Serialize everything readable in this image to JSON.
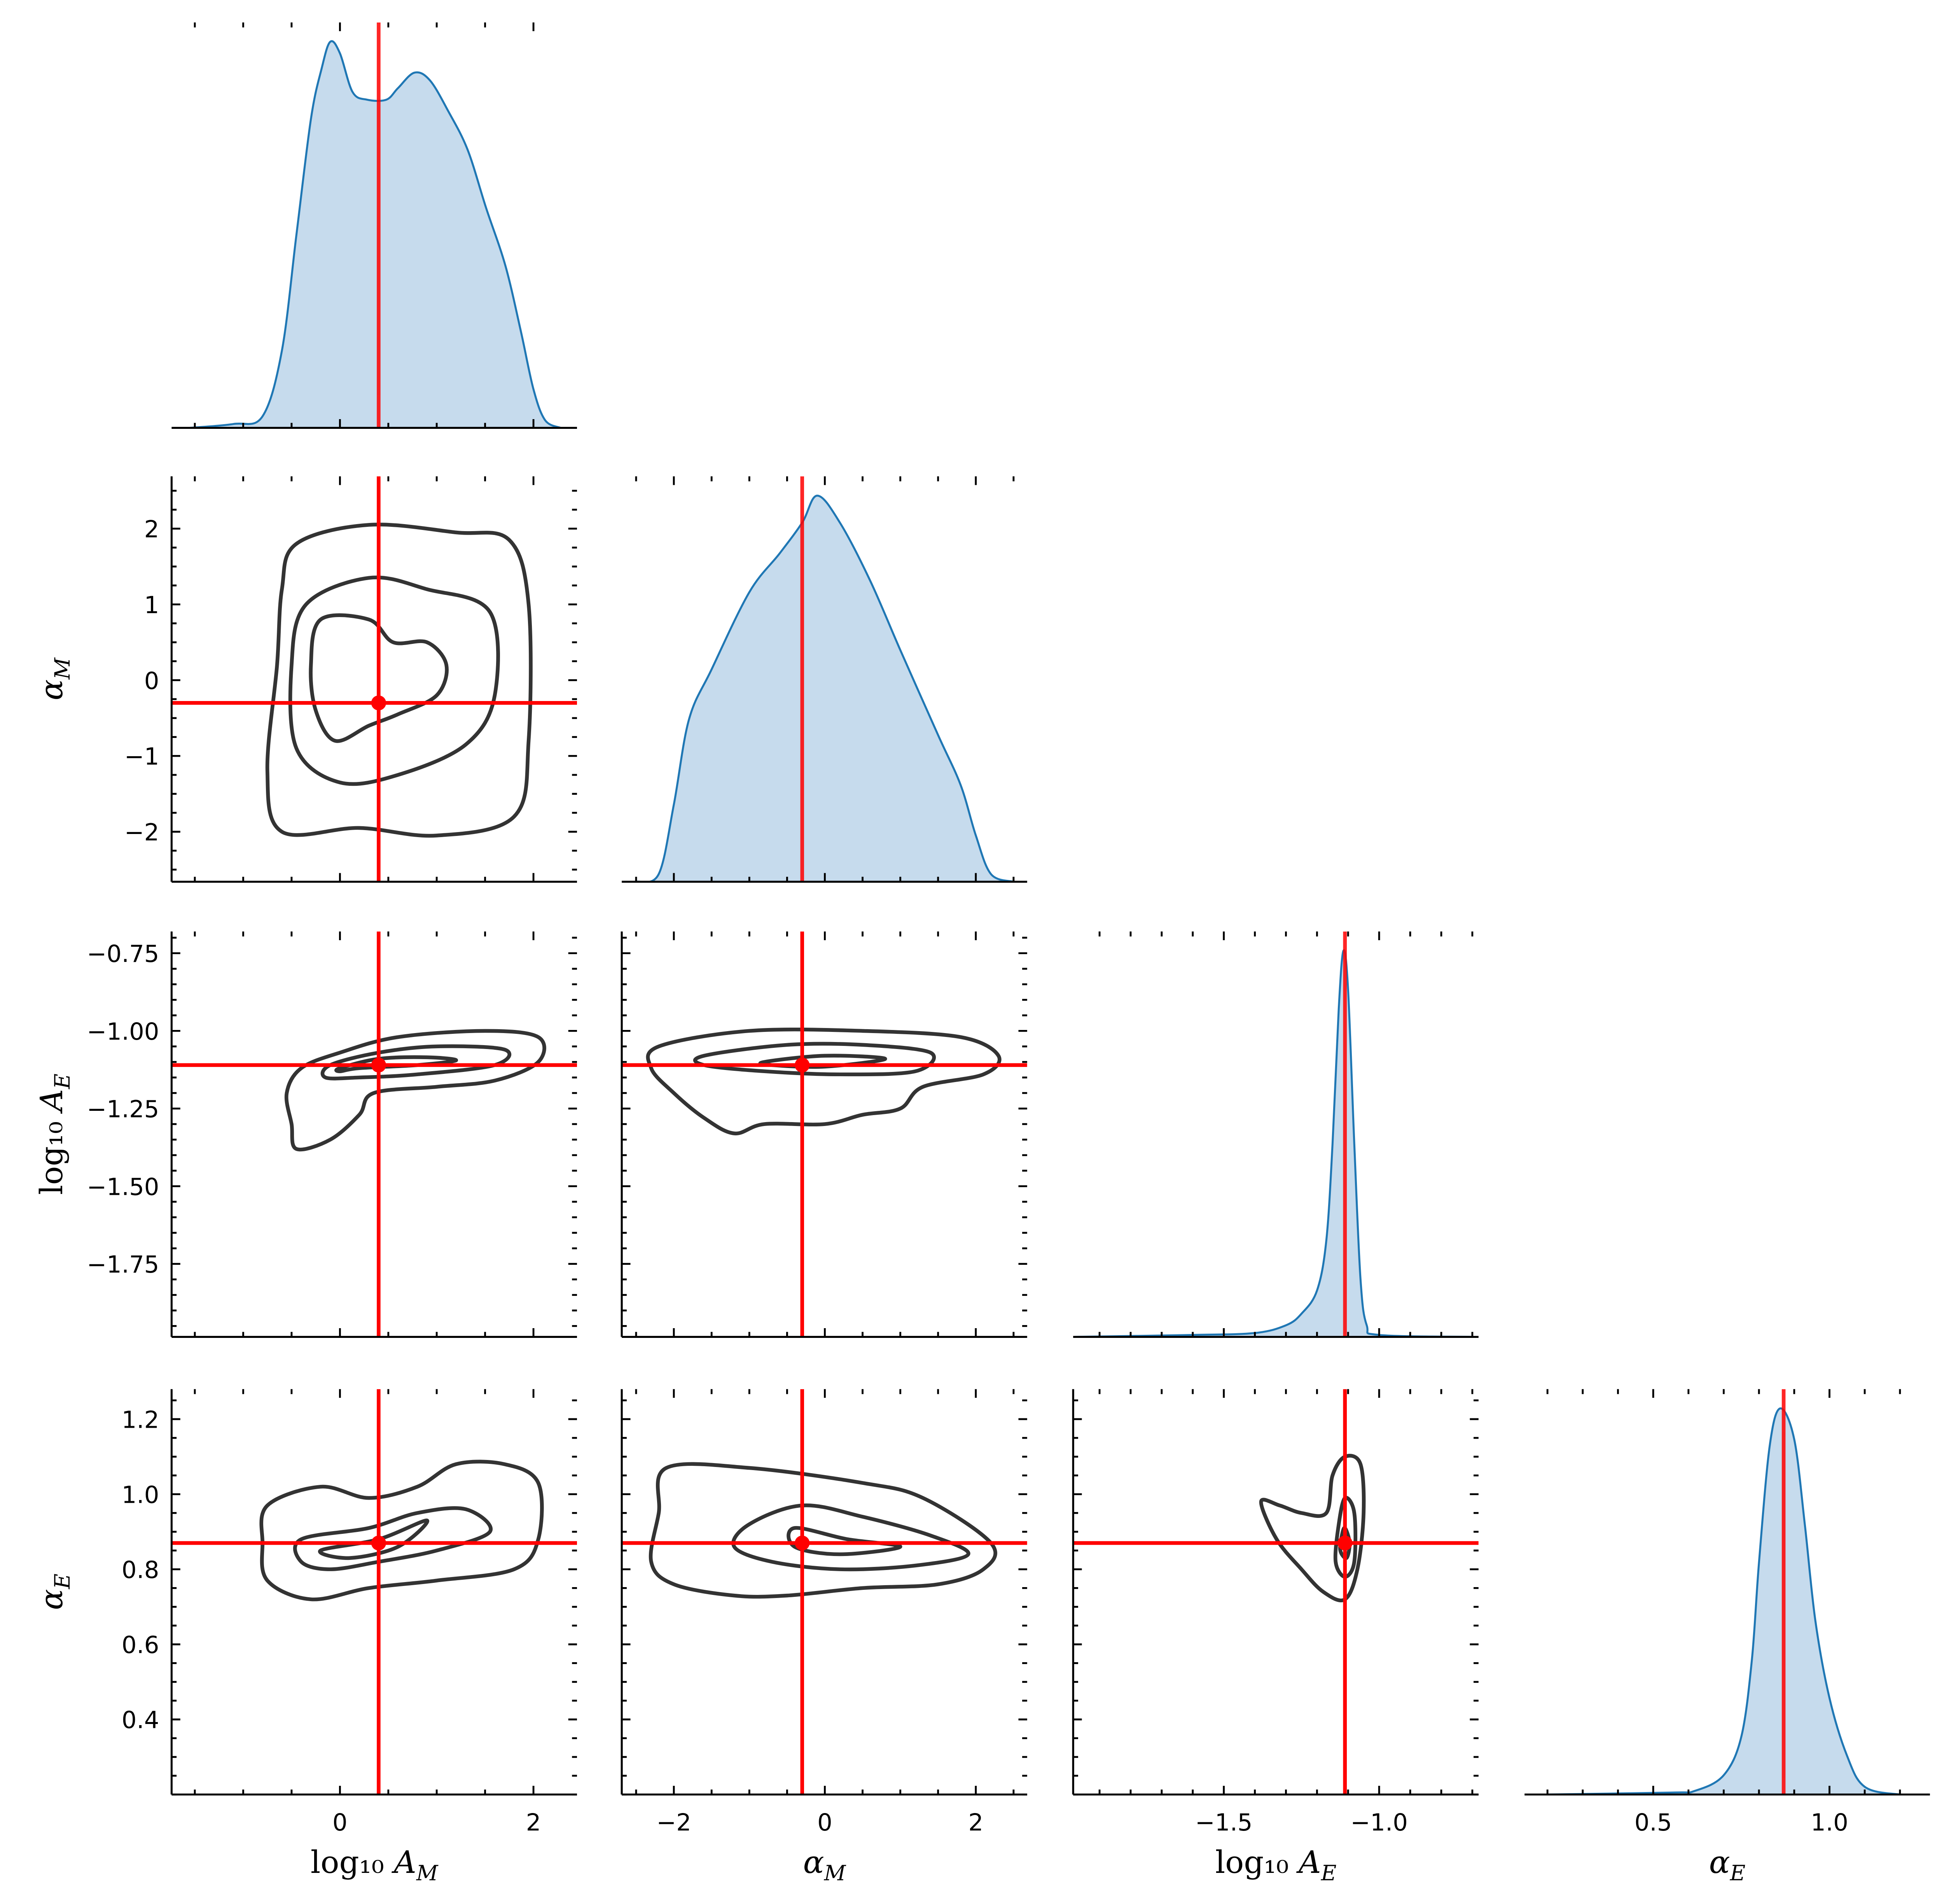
{
  "chart_data": {
    "type": "corner",
    "colors": {
      "kde_line": "#1f77b4",
      "kde_fill": "#c6dbed",
      "truth": "#ff0000",
      "contour": "#333333"
    },
    "truths": [
      0.4,
      -0.3,
      -1.11,
      0.87
    ],
    "parameters": [
      {
        "label": {
          "text": "log₁₀ ",
          "sym": "A",
          "sub": "M"
        },
        "xrange": [
          -1.74,
          2.45
        ],
        "yrange": [
          -1.74,
          2.45
        ],
        "x_ticks": [
          0,
          2
        ],
        "x_tick_labels": [
          "0",
          "2"
        ],
        "x_minor": 0.5,
        "y_ticks": [],
        "y_tick_labels": [],
        "y_minor": 0.5
      },
      {
        "label": {
          "text": "",
          "sym": "α",
          "sub": "M"
        },
        "xrange": [
          -2.69,
          2.68
        ],
        "yrange": [
          -2.66,
          2.69
        ],
        "x_ticks": [
          -2,
          0,
          2
        ],
        "x_tick_labels": [
          "−2",
          "0",
          "2"
        ],
        "x_minor": 0.5,
        "y_ticks": [
          -2,
          -1,
          0,
          1,
          2
        ],
        "y_tick_labels": [
          "−2",
          "−1",
          "0",
          "1",
          "2"
        ],
        "y_minor": 0.25
      },
      {
        "label": {
          "text": "log₁₀ ",
          "sym": "A",
          "sub": "E"
        },
        "xrange": [
          -1.985,
          -0.68
        ],
        "yrange": [
          -1.985,
          -0.68
        ],
        "x_ticks": [
          -1.5,
          -1.0
        ],
        "x_tick_labels": [
          "−1.5",
          "−1.0"
        ],
        "x_minor": 0.1,
        "y_ticks": [
          -1.75,
          -1.5,
          -1.25,
          -1.0,
          -0.75
        ],
        "y_tick_labels": [
          "−1.75",
          "−1.50",
          "−1.25",
          "−1.00",
          "−0.75"
        ],
        "y_minor": 0.05
      },
      {
        "label": {
          "text": "",
          "sym": "α",
          "sub": "E"
        },
        "xrange": [
          0.135,
          1.285
        ],
        "yrange": [
          0.2,
          1.28
        ],
        "x_ticks": [
          0.5,
          1.0
        ],
        "x_tick_labels": [
          "0.5",
          "1.0"
        ],
        "x_minor": 0.1,
        "y_ticks": [
          0.4,
          0.6,
          0.8,
          1.0,
          1.2
        ],
        "y_tick_labels": [
          "0.4",
          "0.6",
          "0.8",
          "1.0",
          "1.2"
        ],
        "y_minor": 0.05
      }
    ],
    "diagonal": [
      {
        "x": [
          -1.55,
          -1.1,
          -0.8,
          -0.6,
          -0.45,
          -0.3,
          -0.19,
          -0.1,
          0,
          0.13,
          0.28,
          0.48,
          0.6,
          0.77,
          0.93,
          1.12,
          1.32,
          1.51,
          1.71,
          1.87,
          2.0,
          2.12,
          2.28
        ],
        "density": [
          0,
          0.01,
          0.03,
          0.2,
          0.5,
          0.8,
          0.93,
          1.0,
          0.97,
          0.87,
          0.85,
          0.85,
          0.88,
          0.92,
          0.9,
          0.82,
          0.72,
          0.57,
          0.42,
          0.25,
          0.1,
          0.02,
          0
        ]
      },
      {
        "x": [
          -2.5,
          -2.2,
          -2.0,
          -1.8,
          -1.5,
          -1.0,
          -0.6,
          -0.3,
          -0.1,
          0.2,
          0.6,
          1.0,
          1.5,
          1.8,
          2.0,
          2.2,
          2.5
        ],
        "density": [
          0,
          0.02,
          0.2,
          0.42,
          0.55,
          0.75,
          0.85,
          0.93,
          1.0,
          0.93,
          0.78,
          0.6,
          0.38,
          0.25,
          0.12,
          0.02,
          0
        ]
      },
      {
        "x": [
          -1.98,
          -1.6,
          -1.4,
          -1.3,
          -1.25,
          -1.2,
          -1.17,
          -1.15,
          -1.13,
          -1.115,
          -1.1,
          -1.08,
          -1.06,
          -1.04,
          -1.0,
          -0.7
        ],
        "density": [
          0,
          0.005,
          0.01,
          0.03,
          0.06,
          0.12,
          0.25,
          0.5,
          0.85,
          1.0,
          0.9,
          0.5,
          0.15,
          0.03,
          0.005,
          0
        ]
      },
      {
        "x": [
          0.2,
          0.55,
          0.62,
          0.7,
          0.75,
          0.78,
          0.8,
          0.83,
          0.86,
          0.9,
          0.93,
          0.96,
          1.0,
          1.05,
          1.1,
          1.2,
          1.28
        ],
        "density": [
          0,
          0.005,
          0.01,
          0.05,
          0.15,
          0.35,
          0.6,
          0.9,
          1.0,
          0.92,
          0.7,
          0.45,
          0.25,
          0.1,
          0.02,
          0,
          0
        ]
      }
    ],
    "contours": [
      {
        "row": 1,
        "col": 0,
        "levels": [
          [
            [
              -0.45,
              1.8
            ],
            [
              0.3,
              2.05
            ],
            [
              1.2,
              1.95
            ],
            [
              1.75,
              1.85
            ],
            [
              1.95,
              1.0
            ],
            [
              1.95,
              -0.8
            ],
            [
              1.8,
              -1.8
            ],
            [
              1.0,
              -2.05
            ],
            [
              0.2,
              -1.95
            ],
            [
              -0.6,
              -2.0
            ],
            [
              -0.75,
              -1.2
            ],
            [
              -0.65,
              0.2
            ],
            [
              -0.6,
              1.2
            ]
          ],
          [
            [
              -0.35,
              1.0
            ],
            [
              0.3,
              1.35
            ],
            [
              0.9,
              1.2
            ],
            [
              1.55,
              0.9
            ],
            [
              1.6,
              -0.2
            ],
            [
              1.3,
              -0.85
            ],
            [
              0.6,
              -1.25
            ],
            [
              0.0,
              -1.35
            ],
            [
              -0.45,
              -0.9
            ],
            [
              -0.5,
              0.2
            ]
          ],
          [
            [
              -0.2,
              0.8
            ],
            [
              0.3,
              0.8
            ],
            [
              0.55,
              0.5
            ],
            [
              0.9,
              0.5
            ],
            [
              1.1,
              0.2
            ],
            [
              1.0,
              -0.2
            ],
            [
              0.6,
              -0.45
            ],
            [
              0.3,
              -0.6
            ],
            [
              -0.05,
              -0.8
            ],
            [
              -0.25,
              -0.4
            ],
            [
              -0.3,
              0.2
            ]
          ]
        ]
      },
      {
        "row": 2,
        "col": 0,
        "levels": [
          [
            [
              -0.4,
              -1.12
            ],
            [
              0.0,
              -1.07
            ],
            [
              0.6,
              -1.02
            ],
            [
              1.5,
              -1.0
            ],
            [
              2.05,
              -1.02
            ],
            [
              2.05,
              -1.1
            ],
            [
              1.6,
              -1.16
            ],
            [
              1.0,
              -1.18
            ],
            [
              0.35,
              -1.2
            ],
            [
              0.2,
              -1.27
            ],
            [
              -0.1,
              -1.35
            ],
            [
              -0.45,
              -1.38
            ],
            [
              -0.5,
              -1.3
            ],
            [
              -0.55,
              -1.2
            ]
          ],
          [
            [
              -0.1,
              -1.11
            ],
            [
              0.4,
              -1.07
            ],
            [
              1.0,
              -1.05
            ],
            [
              1.7,
              -1.06
            ],
            [
              1.6,
              -1.11
            ],
            [
              0.8,
              -1.14
            ],
            [
              0.2,
              -1.15
            ],
            [
              -0.15,
              -1.15
            ]
          ],
          [
            [
              0.0,
              -1.12
            ],
            [
              0.4,
              -1.09
            ],
            [
              0.9,
              -1.085
            ],
            [
              1.2,
              -1.095
            ],
            [
              0.8,
              -1.11
            ],
            [
              0.2,
              -1.12
            ],
            [
              0.0,
              -1.13
            ]
          ]
        ]
      },
      {
        "row": 2,
        "col": 1,
        "levels": [
          [
            [
              -2.2,
              -1.05
            ],
            [
              -1.0,
              -1.0
            ],
            [
              0.5,
              -1.0
            ],
            [
              1.8,
              -1.02
            ],
            [
              2.3,
              -1.08
            ],
            [
              2.1,
              -1.14
            ],
            [
              1.3,
              -1.18
            ],
            [
              1.0,
              -1.25
            ],
            [
              0.5,
              -1.27
            ],
            [
              0,
              -1.3
            ],
            [
              -0.8,
              -1.3
            ],
            [
              -1.2,
              -1.33
            ],
            [
              -1.6,
              -1.28
            ],
            [
              -2.0,
              -1.2
            ],
            [
              -2.3,
              -1.12
            ]
          ],
          [
            [
              -1.6,
              -1.08
            ],
            [
              -0.5,
              -1.045
            ],
            [
              0.5,
              -1.045
            ],
            [
              1.4,
              -1.07
            ],
            [
              1.2,
              -1.13
            ],
            [
              0.2,
              -1.14
            ],
            [
              -0.8,
              -1.13
            ],
            [
              -1.6,
              -1.11
            ]
          ],
          [
            [
              -0.8,
              -1.1
            ],
            [
              0,
              -1.08
            ],
            [
              0.8,
              -1.09
            ],
            [
              0,
              -1.115
            ],
            [
              -0.7,
              -1.11
            ]
          ]
        ]
      },
      {
        "row": 3,
        "col": 0,
        "levels": [
          [
            [
              -0.75,
              0.97
            ],
            [
              -0.2,
              1.02
            ],
            [
              0.3,
              0.99
            ],
            [
              0.8,
              1.02
            ],
            [
              1.2,
              1.08
            ],
            [
              1.7,
              1.08
            ],
            [
              2.05,
              1.03
            ],
            [
              2.05,
              0.88
            ],
            [
              1.8,
              0.8
            ],
            [
              1.0,
              0.77
            ],
            [
              0.3,
              0.75
            ],
            [
              -0.3,
              0.72
            ],
            [
              -0.75,
              0.77
            ],
            [
              -0.8,
              0.87
            ]
          ],
          [
            [
              -0.4,
              0.88
            ],
            [
              0.3,
              0.91
            ],
            [
              0.8,
              0.95
            ],
            [
              1.3,
              0.96
            ],
            [
              1.55,
              0.9
            ],
            [
              1.0,
              0.85
            ],
            [
              0.4,
              0.82
            ],
            [
              -0.1,
              0.8
            ],
            [
              -0.4,
              0.82
            ]
          ],
          [
            [
              -0.2,
              0.85
            ],
            [
              0.4,
              0.88
            ],
            [
              0.9,
              0.93
            ],
            [
              0.6,
              0.86
            ],
            [
              0.1,
              0.83
            ]
          ]
        ]
      },
      {
        "row": 3,
        "col": 1,
        "levels": [
          [
            [
              -2.1,
              1.07
            ],
            [
              -1.0,
              1.07
            ],
            [
              0.5,
              1.03
            ],
            [
              1.3,
              0.99
            ],
            [
              2.2,
              0.87
            ],
            [
              2.1,
              0.8
            ],
            [
              1.5,
              0.76
            ],
            [
              0.5,
              0.75
            ],
            [
              -0.5,
              0.73
            ],
            [
              -1.2,
              0.73
            ],
            [
              -2.0,
              0.76
            ],
            [
              -2.3,
              0.82
            ],
            [
              -2.2,
              0.95
            ]
          ],
          [
            [
              -1.0,
              0.92
            ],
            [
              -0.3,
              0.97
            ],
            [
              0.5,
              0.94
            ],
            [
              1.4,
              0.89
            ],
            [
              1.9,
              0.84
            ],
            [
              1.2,
              0.81
            ],
            [
              0.2,
              0.8
            ],
            [
              -0.7,
              0.82
            ],
            [
              -1.2,
              0.86
            ]
          ],
          [
            [
              -0.4,
              0.91
            ],
            [
              0.3,
              0.88
            ],
            [
              1.0,
              0.86
            ],
            [
              0.2,
              0.84
            ],
            [
              -0.4,
              0.86
            ]
          ]
        ]
      },
      {
        "row": 3,
        "col": 2,
        "levels": [
          [
            [
              -1.11,
              1.1
            ],
            [
              -1.06,
              1.08
            ],
            [
              -1.05,
              0.95
            ],
            [
              -1.07,
              0.8
            ],
            [
              -1.11,
              0.72
            ],
            [
              -1.18,
              0.74
            ],
            [
              -1.25,
              0.8
            ],
            [
              -1.33,
              0.88
            ],
            [
              -1.38,
              0.98
            ],
            [
              -1.32,
              0.97
            ],
            [
              -1.25,
              0.95
            ],
            [
              -1.17,
              0.95
            ],
            [
              -1.15,
              1.05
            ]
          ],
          [
            [
              -1.11,
              0.99
            ],
            [
              -1.08,
              0.95
            ],
            [
              -1.08,
              0.82
            ],
            [
              -1.11,
              0.78
            ],
            [
              -1.14,
              0.82
            ],
            [
              -1.13,
              0.92
            ]
          ],
          [
            [
              -1.11,
              0.91
            ],
            [
              -1.095,
              0.87
            ],
            [
              -1.105,
              0.83
            ],
            [
              -1.125,
              0.85
            ],
            [
              -1.12,
              0.89
            ]
          ]
        ]
      }
    ]
  }
}
